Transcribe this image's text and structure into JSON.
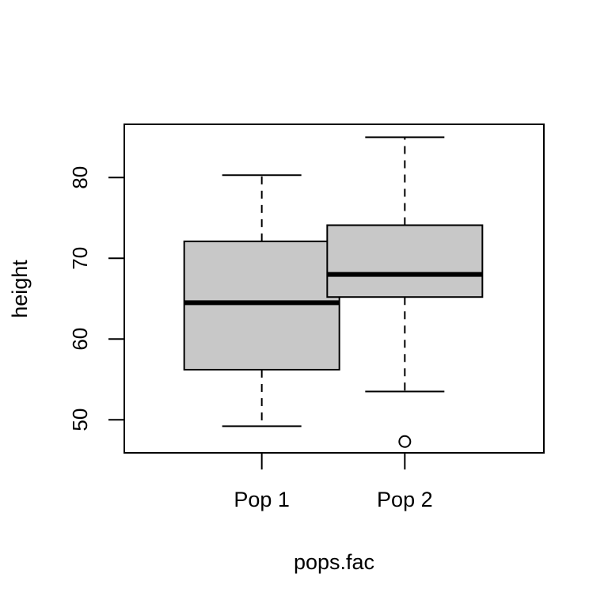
{
  "chart_data": {
    "type": "boxplot",
    "title": "",
    "xlabel": "pops.fac",
    "ylabel": "height",
    "ylim": [
      45.9,
      86.6
    ],
    "yticks": [
      50,
      60,
      70,
      80
    ],
    "ytick_labels": [
      "50",
      "60",
      "70",
      "80"
    ],
    "grid": false,
    "legend": "none",
    "box_fill": "#c8c8c8",
    "stroke_color": "#000000",
    "categories": [
      "Pop 1",
      "Pop 2"
    ],
    "boxes": [
      {
        "category": "Pop 1",
        "whisker_low": 49.2,
        "q1": 56.2,
        "median": 64.5,
        "q3": 72.1,
        "whisker_high": 80.3,
        "outliers": []
      },
      {
        "category": "Pop 2",
        "whisker_low": 53.5,
        "q1": 65.2,
        "median": 68.0,
        "q3": 74.1,
        "whisker_high": 85.0,
        "outliers": [
          47.3
        ]
      }
    ]
  }
}
